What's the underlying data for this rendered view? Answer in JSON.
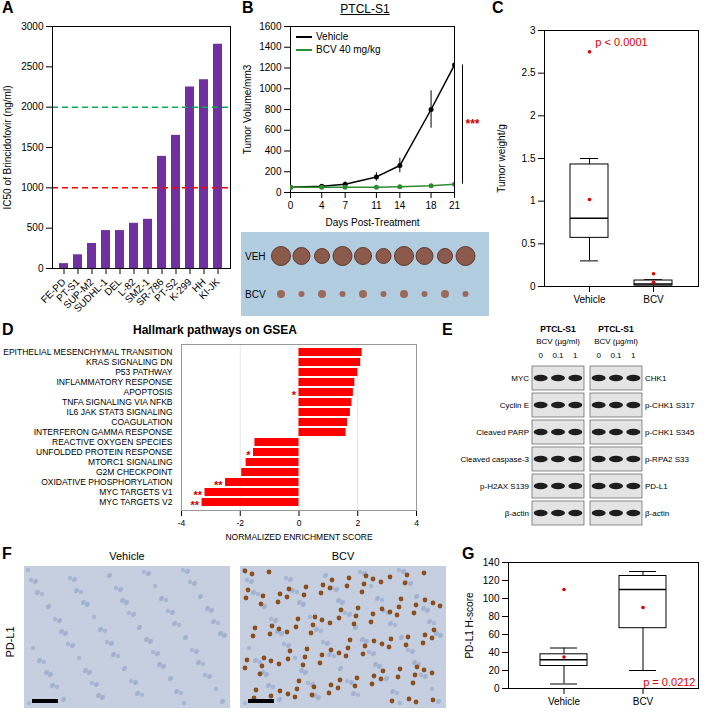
{
  "chart_data": [
    {
      "panel": "A",
      "type": "bar",
      "y_label": "IC50 of Brincidofovir (ng/ml)",
      "categories": [
        "FE-PD",
        "PT-S1",
        "SUP-M2",
        "SUDHL-1",
        "DEL",
        "L-82",
        "SMZ-1",
        "SR-786",
        "PT-S2",
        "K-299",
        "HH",
        "KI-JK"
      ],
      "values": [
        60,
        170,
        310,
        470,
        470,
        560,
        610,
        1390,
        1650,
        2250,
        2340,
        2780
      ],
      "color": "#7030a0",
      "ylim": [
        0,
        3000
      ],
      "yticks": [
        0,
        500,
        1000,
        1500,
        2000,
        2500,
        3000
      ],
      "reference_lines": [
        {
          "value": 1000,
          "color": "#ff0000",
          "line_style": "dashed"
        },
        {
          "value": 2000,
          "color": "#00b050",
          "line_style": "dashed"
        }
      ]
    },
    {
      "panel": "B",
      "type": "line",
      "title": "PTCL-S1",
      "x_label": "Days Post-Treatment",
      "y_label": "Tumor Volume/mm3",
      "x": [
        0,
        4,
        7,
        11,
        14,
        18,
        21
      ],
      "series": [
        {
          "name": "Vehicle",
          "color": "#000000",
          "marker": "circle",
          "values": [
            50,
            60,
            80,
            150,
            260,
            800,
            1230
          ],
          "errors": [
            10,
            12,
            20,
            40,
            70,
            180,
            210
          ]
        },
        {
          "name": "BCV 40 mg/kg",
          "color": "#2e8b2e",
          "marker": "circle",
          "values": [
            50,
            50,
            50,
            50,
            55,
            65,
            80
          ],
          "errors": [
            5,
            5,
            6,
            6,
            8,
            10,
            12
          ]
        }
      ],
      "xlim": [
        0,
        21
      ],
      "xticks": [
        0,
        4,
        7,
        11,
        14,
        18,
        21
      ],
      "ylim": [
        0,
        1600
      ],
      "yticks": [
        0,
        200,
        400,
        600,
        800,
        1000,
        1200,
        1400,
        1600
      ],
      "legend": "top-left",
      "annotation": "***"
    },
    {
      "panel": "C",
      "type": "box",
      "y_label": "Tumor weight/g",
      "categories": [
        "Vehicle",
        "BCV"
      ],
      "stats": [
        {
          "min": 0.3,
          "q1": 0.57,
          "median": 0.8,
          "q3": 1.43,
          "max": 1.5,
          "mean": 1.02,
          "outliers": [
            2.75
          ]
        },
        {
          "min": 0,
          "q1": 0.01,
          "median": 0.03,
          "q3": 0.07,
          "max": 0.08,
          "mean": 0.05,
          "outliers": [
            0.15
          ]
        }
      ],
      "ylim": [
        0,
        3
      ],
      "yticks": [
        0,
        0.5,
        1,
        1.5,
        2,
        2.5,
        3
      ],
      "annotation": "p < 0.0001"
    },
    {
      "panel": "D",
      "type": "bar",
      "orientation": "horizontal",
      "title": "Hallmark pathways on GSEA",
      "x_label": "NORMALIZED ENRICHMENT SCORE",
      "categories": [
        "EPITHELIAL MESENCHYMAL TRANSITION",
        "KRAS SIGNALING DN",
        "P53 PATHWAY",
        "INFLAMMATORY RESPONSE",
        "APOPTOSIS",
        "TNFA SIGNALING VIA NFKB",
        "IL6 JAK STAT3 SIGNALING",
        "COAGULATION",
        "INTERFERON GAMMA RESPONSE",
        "REACTIVE OXYGEN SPECIES",
        "UNFOLDED PROTEIN RESPONSE",
        "MTORC1 SIGNALING",
        "G2M CHECKPOINT",
        "OXIDATIVE PHOSPHORYLATION",
        "MYC TARGETS V1",
        "MYC TARGETS V2"
      ],
      "values": [
        2.15,
        2.1,
        2.0,
        1.9,
        1.85,
        1.8,
        1.75,
        1.65,
        1.6,
        -1.5,
        -1.55,
        -1.8,
        -1.95,
        -2.5,
        -3.2,
        -3.3
      ],
      "significance": [
        null,
        null,
        null,
        null,
        "*",
        null,
        null,
        null,
        null,
        null,
        "*",
        null,
        null,
        "**",
        "**",
        "**"
      ],
      "color": "#ff0000",
      "xlim": [
        -4,
        4
      ],
      "xticks": [
        -4,
        -2,
        0,
        2,
        4
      ],
      "grid": true
    },
    {
      "panel": "G",
      "type": "box",
      "y_label": "PD-L1 H-score",
      "categories": [
        "Vehicle",
        "BCV"
      ],
      "stats": [
        {
          "min": 5,
          "q1": 25,
          "median": 32,
          "q3": 38,
          "max": 45,
          "mean": 35,
          "outliers": [
            110
          ]
        },
        {
          "min": 20,
          "q1": 67,
          "median": 110,
          "q3": 125,
          "max": 130,
          "mean": 90,
          "outliers": []
        }
      ],
      "ylim": [
        0,
        140
      ],
      "yticks": [
        0,
        20,
        40,
        60,
        80,
        100,
        120,
        140
      ],
      "annotation": "p = 0.0212"
    }
  ],
  "tumor_photo": {
    "panel": "B",
    "labels": [
      "VEH",
      "BCV"
    ]
  },
  "western_blot": {
    "panel": "E",
    "blots": [
      {
        "title": "PTCL-S1",
        "treatment": "BCV (µg/ml)",
        "lanes": [
          "0",
          "0.1",
          "1"
        ],
        "side": "left",
        "rows": [
          "MYC",
          "Cyclin E",
          "Cleaved PARP",
          "Cleaved caspase-3",
          "p-H2AX S139",
          "β-actin"
        ]
      },
      {
        "title": "PTCL-S1",
        "treatment": "BCV (µg/ml)",
        "lanes": [
          "0",
          "0.1",
          "1"
        ],
        "side": "right",
        "rows": [
          "CHK1",
          "p-CHK1 S317",
          "p-CHK1 S345",
          "p-RPA2 S33",
          "PD-L1",
          "β-actin"
        ]
      }
    ]
  },
  "ihc": {
    "panel": "F",
    "row_label": "PD-L1",
    "images": [
      "Vehicle",
      "BCV"
    ]
  }
}
